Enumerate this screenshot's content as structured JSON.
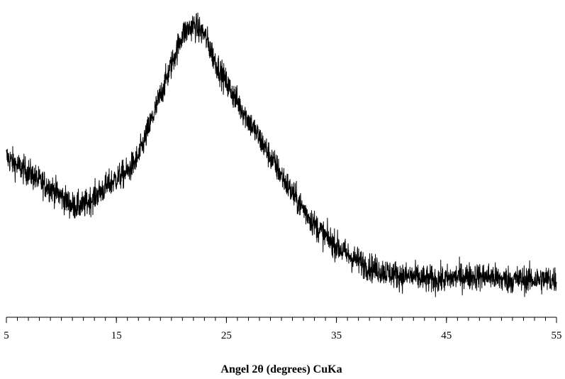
{
  "chart_data": {
    "type": "line",
    "title": "",
    "xlabel": "Angel 2θ (degrees) CuKa",
    "ylabel": "",
    "xlim": [
      5,
      55
    ],
    "ylim": [
      0,
      1
    ],
    "grid": false,
    "legend": "none",
    "y_axis_visible": false,
    "x_major_ticks": [
      5,
      15,
      25,
      35,
      45,
      55
    ],
    "x_minor_tick_step": 1,
    "x_tick_labels": [
      "5",
      "15",
      "25",
      "35",
      "45",
      "55"
    ],
    "noise_amplitude": 0.05,
    "series": [
      {
        "color": "#000000",
        "x": [
          5,
          6,
          7,
          8,
          9,
          10,
          11,
          12,
          13,
          14,
          15,
          16,
          17,
          18,
          19,
          20,
          21,
          22,
          23,
          24,
          25,
          26,
          27,
          28,
          29,
          30,
          31,
          32,
          33,
          34,
          35,
          36,
          37,
          38,
          39,
          40,
          41,
          42,
          43,
          44,
          45,
          46,
          47,
          48,
          49,
          50,
          51,
          52,
          53,
          54,
          55
        ],
        "y": [
          0.5,
          0.47,
          0.45,
          0.42,
          0.4,
          0.37,
          0.34,
          0.34,
          0.37,
          0.4,
          0.43,
          0.45,
          0.5,
          0.6,
          0.7,
          0.8,
          0.9,
          0.93,
          0.9,
          0.81,
          0.74,
          0.68,
          0.62,
          0.56,
          0.5,
          0.44,
          0.38,
          0.33,
          0.28,
          0.24,
          0.21,
          0.18,
          0.16,
          0.14,
          0.13,
          0.12,
          0.11,
          0.11,
          0.1,
          0.1,
          0.1,
          0.11,
          0.11,
          0.11,
          0.11,
          0.1,
          0.1,
          0.1,
          0.1,
          0.1,
          0.1
        ]
      }
    ]
  }
}
